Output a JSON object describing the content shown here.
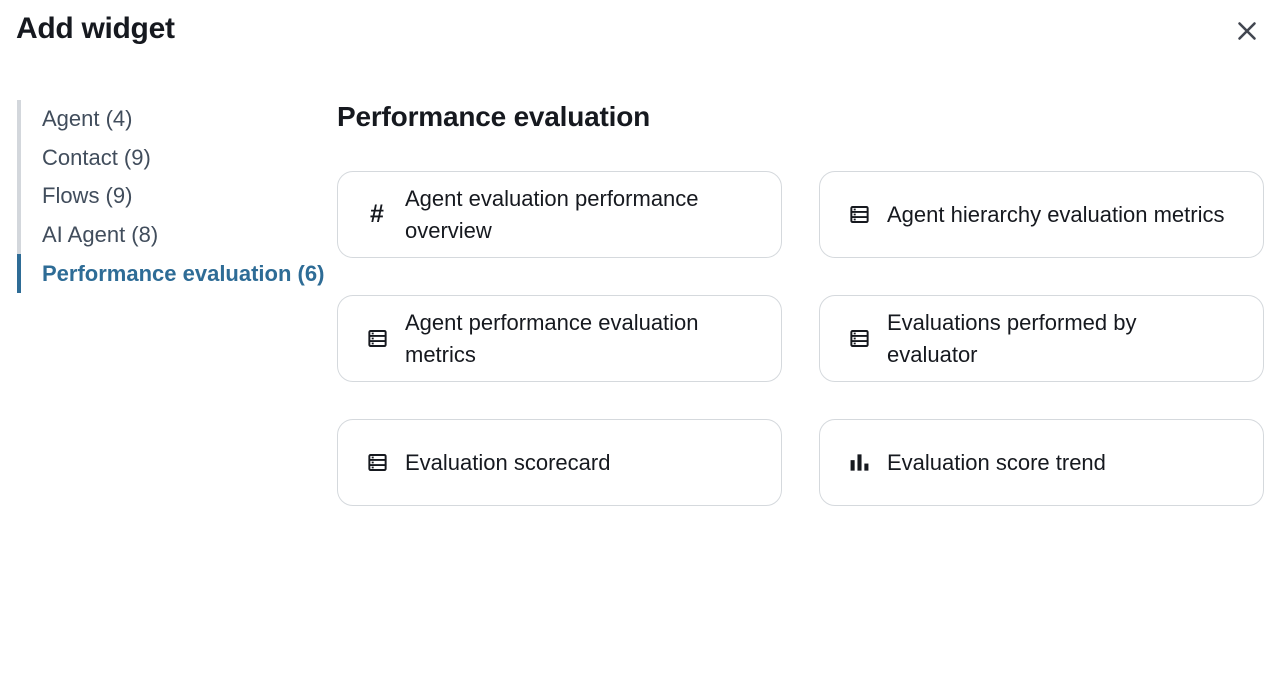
{
  "dialog": {
    "title": "Add widget"
  },
  "close_button": {
    "icon": "close-icon"
  },
  "sidebar": {
    "items": [
      {
        "label": "Agent (4)",
        "selected": false
      },
      {
        "label": "Contact (9)",
        "selected": false
      },
      {
        "label": "Flows (9)",
        "selected": false
      },
      {
        "label": "AI Agent (8)",
        "selected": false
      },
      {
        "label": "Performance evaluation (6)",
        "selected": true
      }
    ]
  },
  "main": {
    "heading": "Performance evaluation",
    "widgets": [
      {
        "label": "Agent evaluation performance\noverview",
        "icon": "number-icon"
      },
      {
        "label": "Agent hierarchy evaluation metrics",
        "icon": "table-icon"
      },
      {
        "label": "Agent performance evaluation\nmetrics",
        "icon": "table-icon"
      },
      {
        "label": "Evaluations performed by\nevaluator",
        "icon": "table-icon"
      },
      {
        "label": "Evaluation scorecard",
        "icon": "table-icon"
      },
      {
        "label": "Evaluation score trend",
        "icon": "bar-chart-icon"
      }
    ]
  },
  "colors": {
    "accent": "#2e6c96",
    "text": "#16191f",
    "muted_text": "#414d5c",
    "divider": "#d3d7dc",
    "card_border": "#d5d9dd"
  }
}
